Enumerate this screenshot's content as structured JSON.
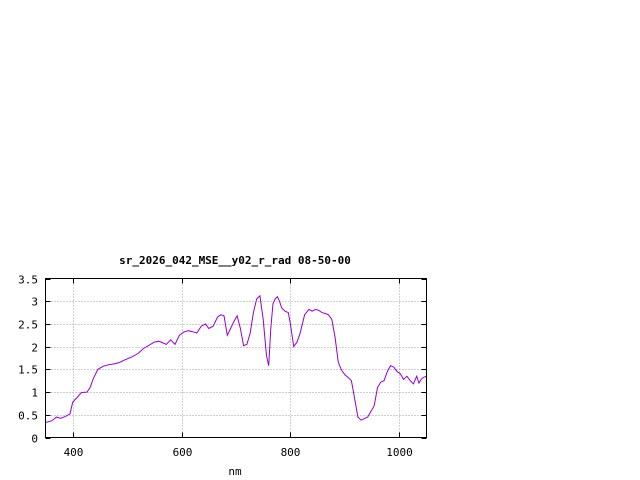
{
  "chart_data": {
    "type": "line",
    "title": "sr_2026_042_MSE__y02_r_rad 08-50-00",
    "xlabel": "nm",
    "ylabel": "",
    "xlim": [
      350,
      1050
    ],
    "ylim": [
      0,
      3.5
    ],
    "x_ticks": [
      400,
      600,
      800,
      1000
    ],
    "x_tick_labels": [
      "400",
      "600",
      "800",
      "1000"
    ],
    "y_ticks": [
      0,
      0.5,
      1,
      1.5,
      2,
      2.5,
      3,
      3.5
    ],
    "y_tick_labels": [
      "0",
      "0.5",
      "1",
      "1.5",
      "2",
      "2.5",
      "3",
      "3.5"
    ],
    "grid": true,
    "line_color": "#9400d3",
    "series": [
      {
        "x": [
          350,
          362,
          370,
          378,
          386,
          395,
          400,
          408,
          416,
          426,
          432,
          438,
          446,
          456,
          466,
          476,
          486,
          494,
          500,
          510,
          520,
          530,
          540,
          550,
          558,
          566,
          572,
          580,
          588,
          596,
          604,
          612,
          620,
          628,
          636,
          644,
          650,
          658,
          666,
          672,
          678,
          684,
          690,
          696,
          702,
          708,
          714,
          720,
          726,
          732,
          738,
          744,
          750,
          756,
          760,
          764,
          768,
          772,
          776,
          780,
          784,
          790,
          796,
          800,
          806,
          812,
          818,
          826,
          834,
          840,
          846,
          852,
          858,
          864,
          870,
          876,
          882,
          888,
          894,
          900,
          906,
          912,
          918,
          924,
          930,
          936,
          942,
          948,
          954,
          960,
          966,
          972,
          978,
          984,
          990,
          996,
          1002,
          1008,
          1014,
          1020,
          1026,
          1032,
          1036,
          1040,
          1044,
          1050
        ],
        "y": [
          0.33,
          0.37,
          0.45,
          0.42,
          0.46,
          0.52,
          0.78,
          0.88,
          0.99,
          1.0,
          1.1,
          1.3,
          1.5,
          1.57,
          1.6,
          1.62,
          1.65,
          1.7,
          1.73,
          1.78,
          1.85,
          1.96,
          2.03,
          2.1,
          2.12,
          2.08,
          2.05,
          2.15,
          2.05,
          2.25,
          2.32,
          2.35,
          2.33,
          2.3,
          2.45,
          2.5,
          2.4,
          2.45,
          2.65,
          2.7,
          2.68,
          2.25,
          2.4,
          2.55,
          2.68,
          2.4,
          2.02,
          2.05,
          2.3,
          2.75,
          3.05,
          3.12,
          2.6,
          1.8,
          1.58,
          2.4,
          2.95,
          3.05,
          3.1,
          3.0,
          2.85,
          2.78,
          2.75,
          2.5,
          2.0,
          2.1,
          2.3,
          2.7,
          2.82,
          2.78,
          2.82,
          2.8,
          2.75,
          2.73,
          2.7,
          2.6,
          2.2,
          1.65,
          1.48,
          1.38,
          1.32,
          1.25,
          0.85,
          0.45,
          0.38,
          0.42,
          0.45,
          0.58,
          0.7,
          1.1,
          1.22,
          1.25,
          1.45,
          1.58,
          1.55,
          1.45,
          1.4,
          1.28,
          1.35,
          1.25,
          1.18,
          1.35,
          1.2,
          1.28,
          1.32,
          1.35
        ]
      }
    ]
  }
}
